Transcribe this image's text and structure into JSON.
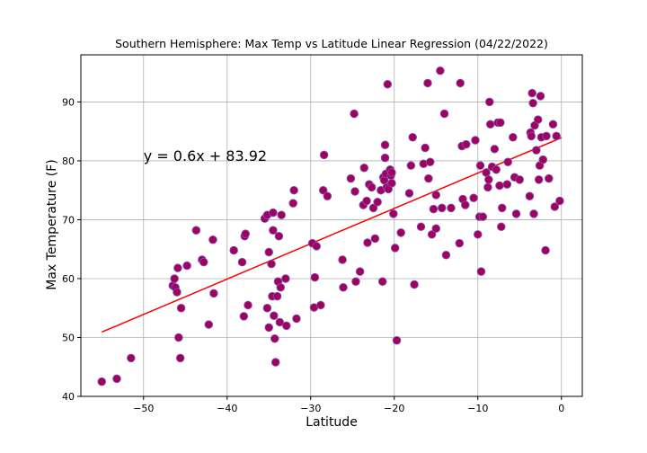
{
  "chart_data": {
    "type": "scatter",
    "title": "Southern Hemisphere: Max Temp vs Latitude Linear Regression (04/22/2022)",
    "xlabel": "Latitude",
    "ylabel": "Max Temperature (F)",
    "xlim": [
      -57.5,
      2.5
    ],
    "ylim": [
      40,
      98
    ],
    "xticks": [
      -50,
      -40,
      -30,
      -20,
      -10,
      0
    ],
    "yticks": [
      40,
      50,
      60,
      70,
      80,
      90
    ],
    "grid": true,
    "marker_color": "#a3005a",
    "marker_edge": "#7a4fc0",
    "line_color": "#ff0000",
    "regression": {
      "slope": 0.6,
      "intercept": 83.92,
      "x_range": [
        -55,
        0
      ],
      "equation": "y = 0.6x + 83.92",
      "label_at": [
        -50,
        80
      ]
    },
    "points": [
      [
        -55,
        42.5
      ],
      [
        -53.2,
        43
      ],
      [
        -51.5,
        46.5
      ],
      [
        -46.5,
        58.8
      ],
      [
        -46.3,
        60
      ],
      [
        -46.2,
        58.5
      ],
      [
        -46,
        57.7
      ],
      [
        -45.9,
        61.8
      ],
      [
        -45.8,
        50
      ],
      [
        -45.6,
        46.5
      ],
      [
        -45.5,
        55
      ],
      [
        -44.8,
        62.2
      ],
      [
        -43.7,
        68.2
      ],
      [
        -43,
        63.2
      ],
      [
        -42.8,
        62.8
      ],
      [
        -42.2,
        52.2
      ],
      [
        -41.7,
        66.6
      ],
      [
        -41.6,
        57.5
      ],
      [
        -39.2,
        64.8
      ],
      [
        -38.2,
        62.8
      ],
      [
        -38,
        53.6
      ],
      [
        -37.9,
        67.2
      ],
      [
        -37.8,
        67.6
      ],
      [
        -37.5,
        55.5
      ],
      [
        -35.5,
        70.2
      ],
      [
        -35.2,
        70.8
      ],
      [
        -35.2,
        55
      ],
      [
        -35,
        51.7
      ],
      [
        -35,
        64.5
      ],
      [
        -34.7,
        62.5
      ],
      [
        -34.6,
        57
      ],
      [
        -34.5,
        71.2
      ],
      [
        -34.5,
        68.2
      ],
      [
        -34.4,
        53.7
      ],
      [
        -34.3,
        49.8
      ],
      [
        -34.2,
        45.8
      ],
      [
        -34,
        57
      ],
      [
        -33.9,
        59.5
      ],
      [
        -33.8,
        67.2
      ],
      [
        -33.7,
        52.6
      ],
      [
        -33.6,
        58.5
      ],
      [
        -33.5,
        70.8
      ],
      [
        -33,
        60
      ],
      [
        -32.9,
        52
      ],
      [
        -32.1,
        72.8
      ],
      [
        -32,
        75
      ],
      [
        -31.7,
        53.2
      ],
      [
        -29.8,
        66
      ],
      [
        -29.6,
        55.1
      ],
      [
        -29.5,
        60.2
      ],
      [
        -29.3,
        65.5
      ],
      [
        -28.8,
        55.5
      ],
      [
        -28.5,
        75
      ],
      [
        -28.4,
        81
      ],
      [
        -28,
        74
      ],
      [
        -26.2,
        63.2
      ],
      [
        -26.1,
        58.5
      ],
      [
        -25.2,
        77
      ],
      [
        -24.8,
        88
      ],
      [
        -24.7,
        74.8
      ],
      [
        -24.6,
        59.5
      ],
      [
        -24.1,
        61.2
      ],
      [
        -23.7,
        72.5
      ],
      [
        -23.6,
        78.8
      ],
      [
        -23.3,
        73.2
      ],
      [
        -23.2,
        66.1
      ],
      [
        -23,
        76
      ],
      [
        -22.7,
        75.5
      ],
      [
        -22.5,
        72
      ],
      [
        -22.3,
        66.8
      ],
      [
        -22,
        73
      ],
      [
        -21.6,
        75
      ],
      [
        -21.4,
        59.5
      ],
      [
        -21.3,
        77.2
      ],
      [
        -21.2,
        76.7
      ],
      [
        -21.1,
        80.5
      ],
      [
        -21.1,
        82.7
      ],
      [
        -21,
        77.8
      ],
      [
        -20.9,
        75.5
      ],
      [
        -20.8,
        93
      ],
      [
        -20.7,
        75.2
      ],
      [
        -20.5,
        78.5
      ],
      [
        -20.4,
        77.5
      ],
      [
        -20.3,
        76.2
      ],
      [
        -20.3,
        78
      ],
      [
        -20.1,
        71
      ],
      [
        -19.9,
        65.2
      ],
      [
        -19.7,
        49.5
      ],
      [
        -19.2,
        67.8
      ],
      [
        -18.2,
        74.5
      ],
      [
        -18,
        79.2
      ],
      [
        -17.8,
        84
      ],
      [
        -17.6,
        59
      ],
      [
        -16.8,
        68.8
      ],
      [
        -16.5,
        79.5
      ],
      [
        -16.3,
        82.2
      ],
      [
        -16,
        93.2
      ],
      [
        -15.9,
        77
      ],
      [
        -15.7,
        79.8
      ],
      [
        -15.5,
        67.5
      ],
      [
        -15.3,
        71.8
      ],
      [
        -15,
        68.5
      ],
      [
        -15,
        74.2
      ],
      [
        -14.5,
        95.3
      ],
      [
        -14.3,
        72
      ],
      [
        -14,
        88
      ],
      [
        -13.8,
        64
      ],
      [
        -13.2,
        72
      ],
      [
        -12.2,
        66
      ],
      [
        -12.1,
        93.2
      ],
      [
        -11.9,
        82.5
      ],
      [
        -11.8,
        73.5
      ],
      [
        -11.5,
        72.5
      ],
      [
        -11.4,
        82.8
      ],
      [
        -10.5,
        73.7
      ],
      [
        -10.3,
        83.5
      ],
      [
        -10,
        67.5
      ],
      [
        -9.8,
        70.5
      ],
      [
        -9.7,
        79.2
      ],
      [
        -9.6,
        61.2
      ],
      [
        -9.4,
        70.5
      ],
      [
        -9,
        78
      ],
      [
        -8.8,
        75.5
      ],
      [
        -8.7,
        76.8
      ],
      [
        -8.6,
        90
      ],
      [
        -8.5,
        86.2
      ],
      [
        -8.3,
        79
      ],
      [
        -8,
        82
      ],
      [
        -7.8,
        78.5
      ],
      [
        -7.6,
        86.5
      ],
      [
        -7.4,
        75.8
      ],
      [
        -7.3,
        86.5
      ],
      [
        -7.2,
        68.8
      ],
      [
        -7.1,
        72
      ],
      [
        -6.5,
        76
      ],
      [
        -6.4,
        79.8
      ],
      [
        -5.8,
        84
      ],
      [
        -5.6,
        77.2
      ],
      [
        -5.4,
        71
      ],
      [
        -5,
        76.8
      ],
      [
        -3.8,
        74
      ],
      [
        -3.7,
        84.8
      ],
      [
        -3.6,
        84.2
      ],
      [
        -3.5,
        91.5
      ],
      [
        -3.4,
        89.8
      ],
      [
        -3.3,
        71
      ],
      [
        -3.2,
        86
      ],
      [
        -3,
        81.8
      ],
      [
        -2.8,
        87
      ],
      [
        -2.7,
        76.8
      ],
      [
        -2.6,
        79.2
      ],
      [
        -2.5,
        91
      ],
      [
        -2.4,
        84
      ],
      [
        -2.2,
        80.2
      ],
      [
        -1.9,
        64.8
      ],
      [
        -1.8,
        84.2
      ],
      [
        -1.5,
        77
      ],
      [
        -1,
        86.2
      ],
      [
        -0.8,
        72.2
      ],
      [
        -0.6,
        84.2
      ],
      [
        -0.2,
        73.2
      ]
    ]
  }
}
